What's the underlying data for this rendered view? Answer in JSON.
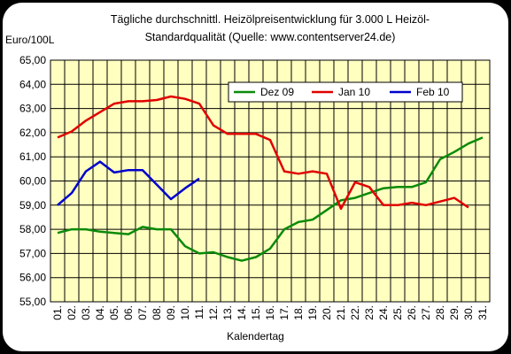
{
  "chart_data": {
    "type": "line",
    "title_line1": "Tägliche durchschnittl. Heizölpreisentwicklung für 3.000 L Heizöl-",
    "title_line2": "Standardqualität (Quelle: www.contentserver24.de)",
    "ylabel": "Euro/100L",
    "xlabel": "Kalendertag",
    "ylim": [
      55,
      65
    ],
    "yticks": [
      "55,00",
      "56,00",
      "57,00",
      "58,00",
      "59,00",
      "60,00",
      "61,00",
      "62,00",
      "63,00",
      "64,00",
      "65,00"
    ],
    "categories": [
      "01.",
      "02.",
      "03.",
      "04.",
      "05.",
      "06.",
      "07.",
      "08.",
      "09.",
      "10.",
      "11.",
      "12.",
      "13.",
      "14.",
      "15.",
      "16.",
      "17.",
      "18.",
      "19.",
      "20.",
      "21.",
      "22.",
      "23.",
      "24.",
      "25.",
      "26.",
      "27.",
      "28.",
      "29.",
      "30.",
      "31."
    ],
    "grid": true,
    "legend_position": "top-right",
    "plot_background": "#ffffc0",
    "series": [
      {
        "name": "Dez 09",
        "color": "#0a8a0a",
        "values": [
          57.85,
          58.0,
          58.0,
          57.9,
          57.85,
          57.8,
          58.1,
          58.0,
          58.0,
          57.3,
          57.0,
          57.05,
          56.85,
          56.7,
          56.85,
          57.2,
          58.0,
          58.3,
          58.4,
          58.8,
          59.2,
          59.3,
          59.5,
          59.7,
          59.75,
          59.75,
          59.95,
          60.9,
          61.2,
          61.55,
          61.8
        ]
      },
      {
        "name": "Jan 10",
        "color": "#e00000",
        "values": [
          61.8,
          62.05,
          62.5,
          62.85,
          63.2,
          63.3,
          63.3,
          63.35,
          63.5,
          63.4,
          63.2,
          62.3,
          61.95,
          61.95,
          61.95,
          61.7,
          60.4,
          60.3,
          60.4,
          60.3,
          58.85,
          59.95,
          59.75,
          59.0,
          59.0,
          59.1,
          59.0,
          59.15,
          59.3,
          58.9,
          null
        ]
      },
      {
        "name": "Feb 10",
        "color": "#0000cc",
        "values": [
          59.0,
          59.5,
          60.4,
          60.8,
          60.35,
          60.45,
          60.45,
          59.85,
          59.25,
          59.7,
          60.1,
          null,
          null,
          null,
          null,
          null,
          null,
          null,
          null,
          null,
          null,
          null,
          null,
          null,
          null,
          null,
          null,
          null,
          null,
          null,
          null
        ]
      }
    ]
  }
}
